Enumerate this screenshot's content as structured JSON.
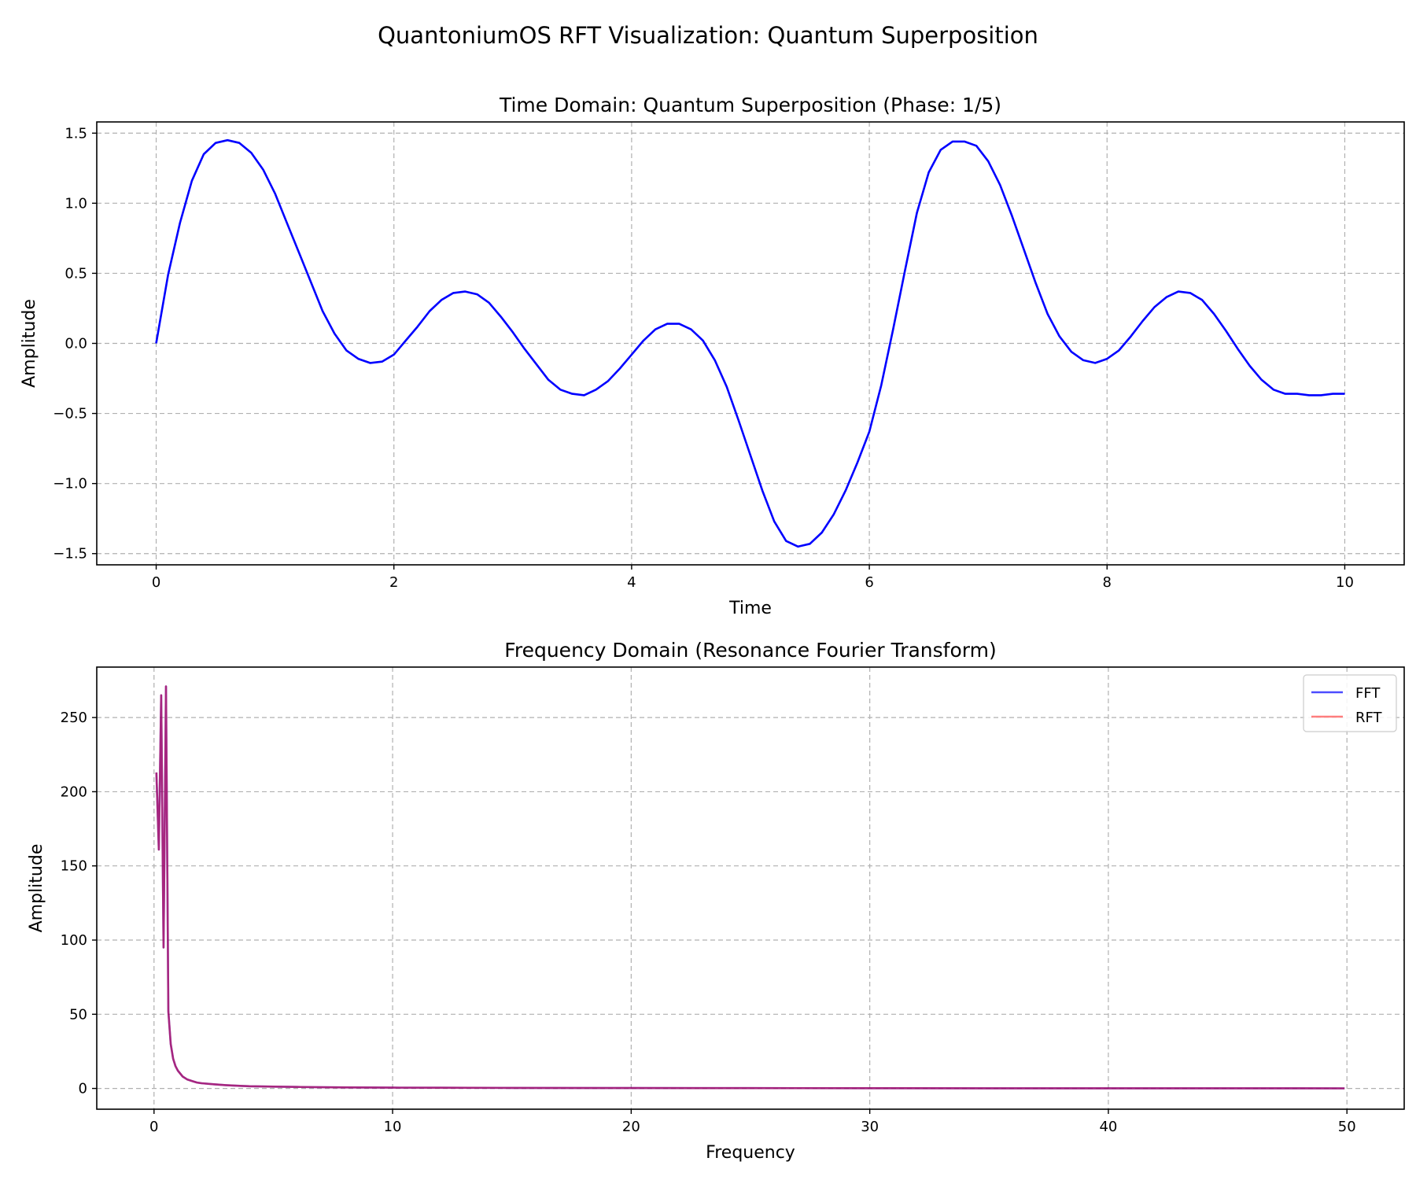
{
  "figure": {
    "suptitle": "QuantoniumOS RFT Visualization: Quantum Superposition"
  },
  "chart_data": [
    {
      "type": "line",
      "title": "Time Domain: Quantum Superposition (Phase: 1/5)",
      "xlabel": "Time",
      "ylabel": "Amplitude",
      "xlim": [
        -0.5,
        10.5
      ],
      "ylim": [
        -1.58,
        1.58
      ],
      "xticks": [
        0,
        2,
        4,
        6,
        8,
        10
      ],
      "xtick_labels": [
        "0",
        "2",
        "4",
        "6",
        "8",
        "10"
      ],
      "yticks": [
        1.5,
        1.0,
        0.5,
        0.0,
        -0.5,
        -1.0,
        -1.5
      ],
      "ytick_labels": [
        "1.5",
        "1.0",
        "0.5",
        "0.0",
        "−0.5",
        "−1.0",
        "−1.5"
      ],
      "grid": true,
      "series": [
        {
          "color": "#0000ff",
          "x": [
            0,
            0.1,
            0.2,
            0.3,
            0.4,
            0.5,
            0.6,
            0.7,
            0.8,
            0.9,
            1.0,
            1.1,
            1.2,
            1.3,
            1.4,
            1.5,
            1.6,
            1.7,
            1.8,
            1.9,
            2.0,
            2.1,
            2.2,
            2.3,
            2.4,
            2.5,
            2.6,
            2.7,
            2.8,
            2.9,
            3.0,
            3.1,
            3.2,
            3.3,
            3.4,
            3.5,
            3.6,
            3.7,
            3.8,
            3.9,
            4.0,
            4.1,
            4.2,
            4.3,
            4.4,
            4.5,
            4.6,
            4.7,
            4.8,
            4.9,
            5.0,
            5.1,
            5.2,
            5.3,
            5.4,
            5.5,
            5.6,
            5.7,
            5.8,
            5.9,
            6.0,
            6.1,
            6.2,
            6.3,
            6.4,
            6.5,
            6.6,
            6.7,
            6.8,
            6.9,
            7.0,
            7.1,
            7.2,
            7.3,
            7.4,
            7.5,
            7.6,
            7.7,
            7.8,
            7.9,
            8.0,
            8.1,
            8.2,
            8.3,
            8.4,
            8.5,
            8.6,
            8.7,
            8.8,
            8.9,
            9.0,
            9.1,
            9.2,
            9.3,
            9.4,
            9.5,
            9.6,
            9.7,
            9.8,
            9.9,
            10.0
          ],
          "y": [
            0.0,
            0.49,
            0.86,
            1.16,
            1.35,
            1.43,
            1.45,
            1.43,
            1.36,
            1.24,
            1.07,
            0.86,
            0.65,
            0.44,
            0.23,
            0.07,
            -0.05,
            -0.11,
            -0.14,
            -0.13,
            -0.08,
            0.02,
            0.12,
            0.23,
            0.31,
            0.36,
            0.37,
            0.35,
            0.29,
            0.19,
            0.08,
            -0.04,
            -0.15,
            -0.26,
            -0.33,
            -0.36,
            -0.37,
            -0.33,
            -0.27,
            -0.18,
            -0.08,
            0.02,
            0.1,
            0.14,
            0.14,
            0.1,
            0.02,
            -0.12,
            -0.31,
            -0.55,
            -0.8,
            -1.05,
            -1.27,
            -1.41,
            -1.45,
            -1.43,
            -1.35,
            -1.22,
            -1.05,
            -0.85,
            -0.63,
            -0.3,
            0.1,
            0.52,
            0.93,
            1.22,
            1.38,
            1.44,
            1.44,
            1.41,
            1.3,
            1.13,
            0.91,
            0.67,
            0.43,
            0.21,
            0.05,
            -0.06,
            -0.12,
            -0.14,
            -0.11,
            -0.05,
            0.05,
            0.16,
            0.26,
            0.33,
            0.37,
            0.36,
            0.31,
            0.21,
            0.09,
            -0.04,
            -0.16,
            -0.26,
            -0.33,
            -0.36,
            -0.36,
            -0.37,
            -0.37,
            -0.36,
            -0.36
          ]
        }
      ]
    },
    {
      "type": "line",
      "title": "Frequency Domain (Resonance Fourier Transform)",
      "xlabel": "Frequency",
      "ylabel": "Amplitude",
      "xlim": [
        -2.4,
        52.4
      ],
      "ylim": [
        -14,
        284
      ],
      "xticks": [
        0,
        10,
        20,
        30,
        40,
        50
      ],
      "xtick_labels": [
        "0",
        "10",
        "20",
        "30",
        "40",
        "50"
      ],
      "yticks": [
        0,
        50,
        100,
        150,
        200,
        250
      ],
      "ytick_labels": [
        "0",
        "50",
        "100",
        "150",
        "200",
        "250"
      ],
      "grid": true,
      "legend": {
        "position": "top-right"
      },
      "series": [
        {
          "name": "FFT",
          "color": "#0000ff",
          "opacity": 0.7,
          "x": [
            0.1,
            0.2,
            0.3,
            0.4,
            0.5,
            0.6,
            0.7,
            0.8,
            0.9,
            1.0,
            1.2,
            1.4,
            1.6,
            1.8,
            2.0,
            2.5,
            3.0,
            3.5,
            4.0,
            5.0,
            6.0,
            7.0,
            8.0,
            10.0,
            12.0,
            15.0,
            20.0,
            25.0,
            30.0,
            35.0,
            40.0,
            45.0,
            49.9
          ],
          "y": [
            213,
            161,
            265,
            95,
            271,
            52,
            30,
            20,
            15,
            12,
            8,
            6,
            5,
            4,
            3.5,
            2.8,
            2.2,
            1.8,
            1.5,
            1.2,
            1.0,
            0.8,
            0.7,
            0.55,
            0.45,
            0.35,
            0.25,
            0.2,
            0.15,
            0.12,
            0.1,
            0.08,
            0.07
          ]
        },
        {
          "name": "RFT",
          "color": "#ff0000",
          "opacity": 0.5,
          "x": [
            0.1,
            0.2,
            0.3,
            0.4,
            0.5,
            0.6,
            0.7,
            0.8,
            0.9,
            1.0,
            1.2,
            1.4,
            1.6,
            1.8,
            2.0,
            2.5,
            3.0,
            3.5,
            4.0,
            5.0,
            6.0,
            7.0,
            8.0,
            10.0,
            12.0,
            15.0,
            20.0,
            25.0,
            30.0,
            35.0,
            40.0,
            45.0,
            49.9
          ],
          "y": [
            213,
            161,
            265,
            95,
            271,
            52,
            30,
            20,
            15,
            12,
            8,
            6,
            5,
            4,
            3.5,
            2.8,
            2.2,
            1.8,
            1.5,
            1.2,
            1.0,
            0.8,
            0.7,
            0.55,
            0.45,
            0.35,
            0.25,
            0.2,
            0.15,
            0.12,
            0.1,
            0.08,
            0.07
          ]
        }
      ]
    }
  ]
}
